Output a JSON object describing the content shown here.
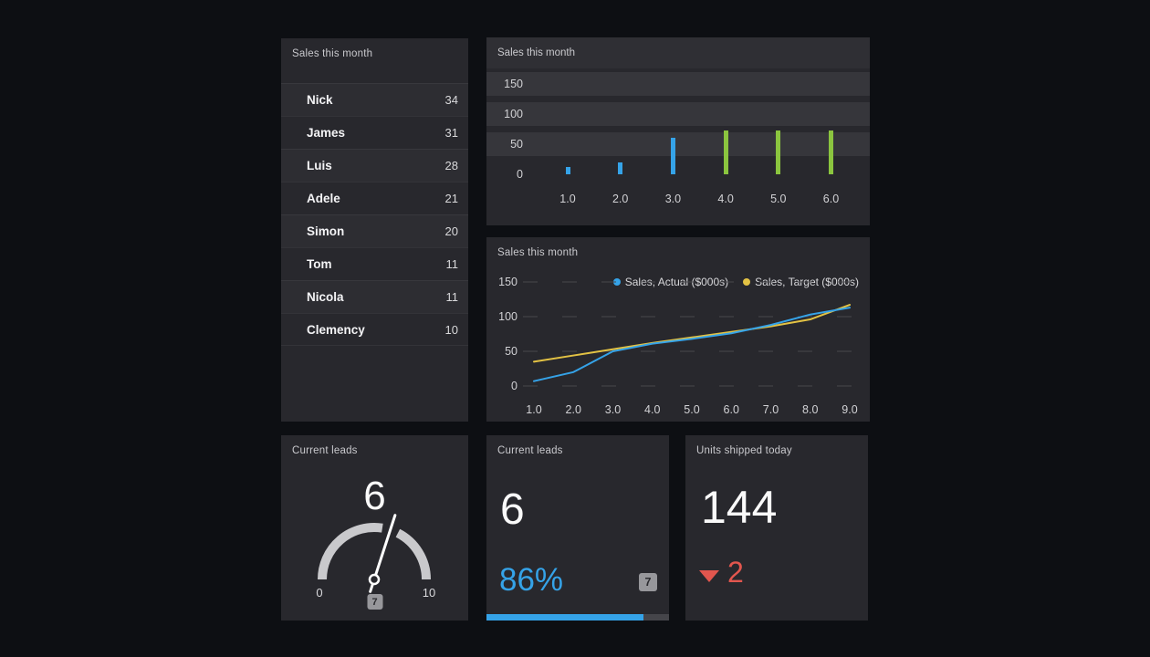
{
  "theme": {
    "background": "#0d0f13",
    "panel": "#28282d",
    "panel_header": "#2f2f34",
    "stripe": "#36363b",
    "muted_text": "#c9c9cd",
    "axis_text": "#d2d2d5",
    "grid_line": "#47474c",
    "blue": "#35a3e8",
    "green": "#8bc53f",
    "yellow": "#e3c244",
    "red": "#e2564e",
    "badge_bg": "#97979b",
    "badge_text": "#2b2b2f",
    "gauge_arc": "#c9c9cc",
    "needle": "#ffffff"
  },
  "leaderboard": {
    "title": "Sales this month",
    "rows": [
      {
        "name": "Nick",
        "value": "34"
      },
      {
        "name": "James",
        "value": "31"
      },
      {
        "name": "Luis",
        "value": "28"
      },
      {
        "name": "Adele",
        "value": "21"
      },
      {
        "name": "Simon",
        "value": "20"
      },
      {
        "name": "Tom",
        "value": "11"
      },
      {
        "name": "Nicola",
        "value": "11"
      },
      {
        "name": "Clemency",
        "value": "10"
      }
    ]
  },
  "chart_data": [
    {
      "id": "sales-bar-chart",
      "type": "bar",
      "title": "Sales this month",
      "categories": [
        "1.0",
        "2.0",
        "3.0",
        "4.0",
        "5.0",
        "6.0"
      ],
      "values": [
        12,
        20,
        60,
        72,
        72,
        72
      ],
      "bar_colors": [
        "#35a3e8",
        "#35a3e8",
        "#35a3e8",
        "#8bc53f",
        "#8bc53f",
        "#8bc53f"
      ],
      "ylim": [
        0,
        150
      ],
      "yticks": [
        0,
        50,
        100,
        150
      ],
      "grid": "striped-rows",
      "legend_position": "none"
    },
    {
      "id": "sales-line-chart",
      "type": "line",
      "title": "Sales this month",
      "x": [
        "1.0",
        "2.0",
        "3.0",
        "4.0",
        "5.0",
        "6.0",
        "7.0",
        "8.0",
        "9.0"
      ],
      "series": [
        {
          "name": "Sales, Actual ($000s)",
          "color": "#35a3e8",
          "values": [
            7,
            20,
            50,
            61,
            68,
            76,
            88,
            103,
            113
          ]
        },
        {
          "name": "Sales, Target ($000s)",
          "color": "#e3c244",
          "values": [
            35,
            44,
            53,
            62,
            70,
            78,
            86,
            96,
            117
          ]
        }
      ],
      "ylim": [
        0,
        150
      ],
      "yticks": [
        0,
        50,
        100,
        150
      ],
      "grid": "dashed-horizontal",
      "legend_position": "top-right"
    },
    {
      "id": "leads-gauge",
      "type": "gauge",
      "title": "Current leads",
      "value": 6,
      "min": 0,
      "max": 10,
      "badge": 7
    },
    {
      "id": "leads-number",
      "type": "number",
      "title": "Current leads",
      "value": 6,
      "percent": "86%",
      "percent_value": 86,
      "badge": 7
    },
    {
      "id": "units-number",
      "type": "number",
      "title": "Units shipped today",
      "value": 144,
      "change": 2,
      "change_direction": "down"
    }
  ]
}
